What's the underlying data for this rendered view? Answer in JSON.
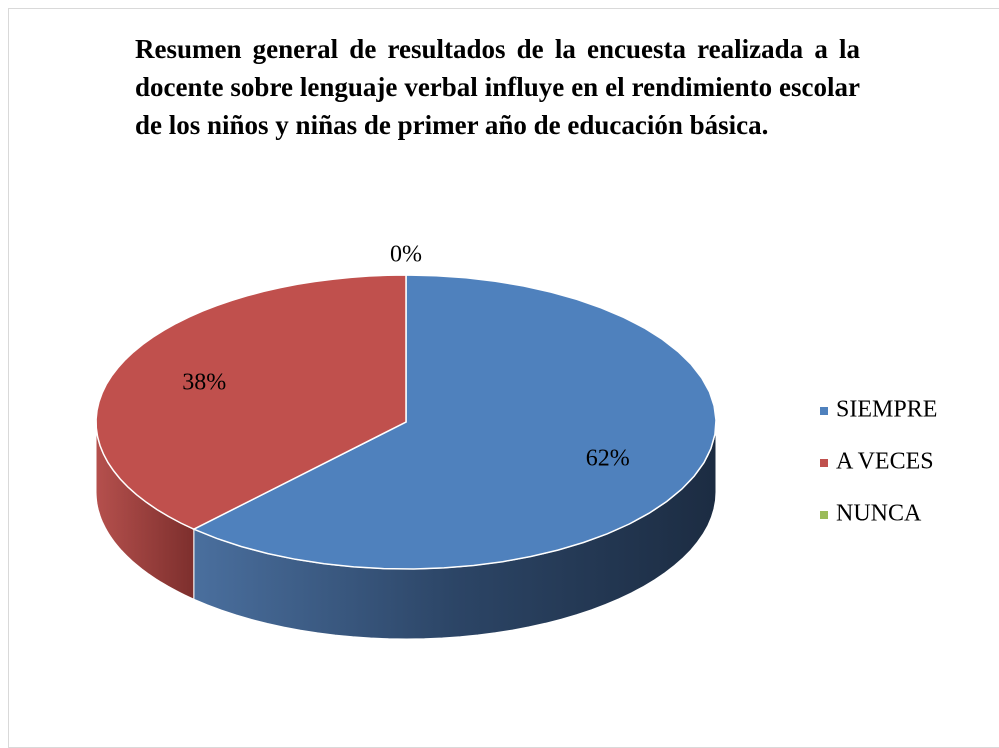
{
  "chart_data": {
    "type": "pie",
    "title": "Resumen general de resultados de la encuesta realizada a la docente sobre lenguaje verbal influye en el rendimiento escolar de los niños y niñas de primer año de educación básica.",
    "categories": [
      "SIEMPRE",
      "A VECES",
      "NUNCA"
    ],
    "values": [
      62,
      38,
      0
    ],
    "value_labels": [
      "62%",
      "38%",
      "0%"
    ],
    "colors": [
      "#4f81bd",
      "#c0504d",
      "#9bbb59"
    ],
    "legend": "right"
  }
}
